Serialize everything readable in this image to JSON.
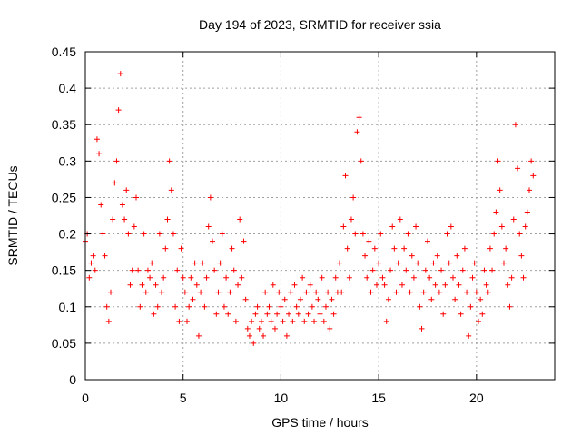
{
  "chart_data": {
    "type": "scatter",
    "title": "Day 194 of 2023, SRMTID for receiver ssia",
    "xlabel": "GPS time / hours",
    "ylabel": "SRMTID / TECUs",
    "xlim": [
      0,
      24
    ],
    "ylim": [
      0,
      0.45
    ],
    "xticks": [
      0,
      5,
      10,
      15,
      20
    ],
    "xtick_labels": [
      "0",
      "5",
      "10",
      "15",
      "20"
    ],
    "yticks": [
      0,
      0.05,
      0.1,
      0.15,
      0.2,
      0.25,
      0.3,
      0.35,
      0.4,
      0.45
    ],
    "ytick_labels": [
      "0",
      "0.05",
      "0.1",
      "0.15",
      "0.2",
      "0.25",
      "0.3",
      "0.35",
      "0.4",
      "0.45"
    ],
    "grid": true,
    "marker": "+",
    "color": "#ff0000",
    "series": [
      {
        "name": "SRMTID",
        "x": [
          0.0,
          0.1,
          0.2,
          0.3,
          0.4,
          0.5,
          0.6,
          0.7,
          0.8,
          0.9,
          1.0,
          1.1,
          1.2,
          1.3,
          1.4,
          1.5,
          1.6,
          1.7,
          1.8,
          1.9,
          2.0,
          2.1,
          2.2,
          2.3,
          2.4,
          2.5,
          2.6,
          2.7,
          2.8,
          2.9,
          3.0,
          3.1,
          3.2,
          3.3,
          3.4,
          3.5,
          3.6,
          3.7,
          3.8,
          3.9,
          4.0,
          4.1,
          4.2,
          4.3,
          4.4,
          4.5,
          4.6,
          4.7,
          4.8,
          4.9,
          5.0,
          5.1,
          5.2,
          5.3,
          5.4,
          5.5,
          5.6,
          5.7,
          5.8,
          5.9,
          6.0,
          6.1,
          6.2,
          6.3,
          6.4,
          6.5,
          6.6,
          6.7,
          6.8,
          6.9,
          7.0,
          7.1,
          7.2,
          7.3,
          7.4,
          7.5,
          7.6,
          7.7,
          7.8,
          7.9,
          8.0,
          8.1,
          8.2,
          8.3,
          8.4,
          8.5,
          8.6,
          8.7,
          8.8,
          8.9,
          9.0,
          9.1,
          9.2,
          9.3,
          9.4,
          9.5,
          9.6,
          9.7,
          9.8,
          9.9,
          10.0,
          10.1,
          10.2,
          10.3,
          10.4,
          10.5,
          10.6,
          10.7,
          10.8,
          10.9,
          11.0,
          11.1,
          11.2,
          11.3,
          11.4,
          11.5,
          11.6,
          11.7,
          11.8,
          11.9,
          12.0,
          12.1,
          12.2,
          12.3,
          12.4,
          12.5,
          12.6,
          12.7,
          12.8,
          12.9,
          13.0,
          13.1,
          13.2,
          13.3,
          13.4,
          13.5,
          13.6,
          13.7,
          13.8,
          13.9,
          14.0,
          14.1,
          14.2,
          14.3,
          14.4,
          14.5,
          14.6,
          14.7,
          14.8,
          14.9,
          15.0,
          15.1,
          15.2,
          15.3,
          15.4,
          15.5,
          15.6,
          15.7,
          15.8,
          15.9,
          16.0,
          16.1,
          16.2,
          16.3,
          16.4,
          16.5,
          16.6,
          16.7,
          16.8,
          16.9,
          17.0,
          17.1,
          17.2,
          17.3,
          17.4,
          17.5,
          17.6,
          17.7,
          17.8,
          17.9,
          18.0,
          18.1,
          18.2,
          18.3,
          18.4,
          18.5,
          18.6,
          18.7,
          18.8,
          18.9,
          19.0,
          19.1,
          19.2,
          19.3,
          19.4,
          19.5,
          19.6,
          19.7,
          19.8,
          19.9,
          20.0,
          20.1,
          20.2,
          20.3,
          20.4,
          20.5,
          20.6,
          20.7,
          20.8,
          20.9,
          21.0,
          21.1,
          21.2,
          21.3,
          21.4,
          21.5,
          21.6,
          21.7,
          21.8,
          21.9,
          22.0,
          22.1,
          22.2,
          22.3,
          22.4,
          22.5,
          22.6,
          22.7,
          22.8,
          22.9
        ],
        "y": [
          0.19,
          0.2,
          0.14,
          0.16,
          0.17,
          0.15,
          0.33,
          0.31,
          0.24,
          0.2,
          0.17,
          0.1,
          0.08,
          0.12,
          0.22,
          0.27,
          0.3,
          0.37,
          0.42,
          0.24,
          0.22,
          0.26,
          0.2,
          0.13,
          0.15,
          0.21,
          0.25,
          0.15,
          0.1,
          0.13,
          0.2,
          0.12,
          0.15,
          0.14,
          0.16,
          0.09,
          0.13,
          0.1,
          0.2,
          0.12,
          0.14,
          0.18,
          0.22,
          0.3,
          0.26,
          0.2,
          0.1,
          0.15,
          0.08,
          0.18,
          0.14,
          0.12,
          0.08,
          0.1,
          0.14,
          0.11,
          0.16,
          0.13,
          0.06,
          0.12,
          0.16,
          0.1,
          0.14,
          0.21,
          0.25,
          0.19,
          0.15,
          0.09,
          0.12,
          0.16,
          0.2,
          0.1,
          0.14,
          0.09,
          0.12,
          0.18,
          0.15,
          0.08,
          0.13,
          0.22,
          0.14,
          0.19,
          0.11,
          0.07,
          0.06,
          0.08,
          0.05,
          0.09,
          0.1,
          0.07,
          0.08,
          0.06,
          0.12,
          0.09,
          0.1,
          0.08,
          0.13,
          0.07,
          0.09,
          0.12,
          0.1,
          0.08,
          0.11,
          0.06,
          0.09,
          0.12,
          0.08,
          0.13,
          0.1,
          0.09,
          0.11,
          0.14,
          0.08,
          0.12,
          0.09,
          0.13,
          0.1,
          0.08,
          0.12,
          0.11,
          0.09,
          0.14,
          0.08,
          0.1,
          0.12,
          0.07,
          0.11,
          0.09,
          0.14,
          0.12,
          0.16,
          0.12,
          0.21,
          0.28,
          0.18,
          0.14,
          0.22,
          0.25,
          0.2,
          0.34,
          0.36,
          0.3,
          0.2,
          0.17,
          0.14,
          0.19,
          0.12,
          0.15,
          0.18,
          0.13,
          0.16,
          0.2,
          0.14,
          0.13,
          0.08,
          0.11,
          0.15,
          0.21,
          0.18,
          0.12,
          0.16,
          0.22,
          0.13,
          0.18,
          0.15,
          0.2,
          0.12,
          0.17,
          0.14,
          0.21,
          0.16,
          0.1,
          0.07,
          0.12,
          0.15,
          0.19,
          0.14,
          0.11,
          0.16,
          0.13,
          0.17,
          0.12,
          0.15,
          0.09,
          0.13,
          0.2,
          0.16,
          0.21,
          0.14,
          0.11,
          0.17,
          0.13,
          0.09,
          0.15,
          0.18,
          0.12,
          0.06,
          0.1,
          0.14,
          0.16,
          0.12,
          0.08,
          0.11,
          0.09,
          0.15,
          0.13,
          0.12,
          0.18,
          0.15,
          0.2,
          0.23,
          0.3,
          0.26,
          0.21,
          0.16,
          0.18,
          0.13,
          0.1,
          0.14,
          0.22,
          0.35,
          0.29,
          0.2,
          0.17,
          0.14,
          0.21,
          0.23,
          0.26,
          0.3,
          0.28
        ]
      }
    ]
  }
}
